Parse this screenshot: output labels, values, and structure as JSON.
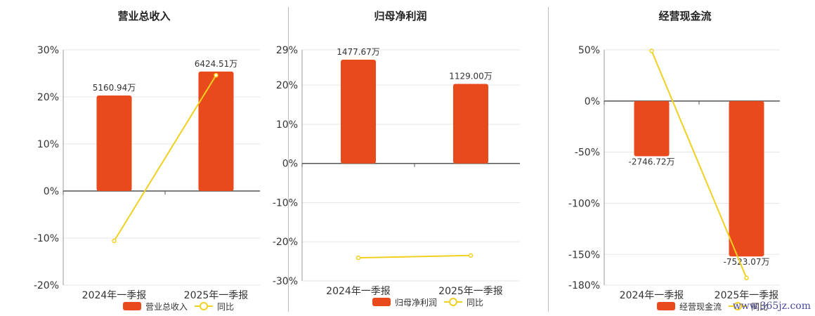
{
  "chart_data": [
    {
      "type": "bar",
      "title": "营业总收入",
      "categories": [
        "2024年一季报",
        "2025年一季报"
      ],
      "series": [
        {
          "name": "营业总收入",
          "kind": "bar",
          "values": [
            20.3,
            25.4
          ],
          "labels": [
            "5160.94万",
            "6424.51万"
          ],
          "color": "#e84a1c"
        },
        {
          "name": "同比",
          "kind": "line",
          "values": [
            -10.6,
            24.6
          ],
          "color": "#f0d020"
        }
      ],
      "ylim": [
        -20,
        30
      ],
      "yticks": [
        30,
        20,
        10,
        0,
        -10,
        -20
      ],
      "ytick_labels": [
        "30%",
        "20%",
        "10%",
        "0%",
        "-10%",
        "-20%"
      ],
      "grid": true,
      "legend": "bottom"
    },
    {
      "type": "bar",
      "title": "归母净利润",
      "categories": [
        "2024年一季报",
        "2025年一季报"
      ],
      "series": [
        {
          "name": "归母净利润",
          "kind": "bar",
          "values": [
            26.5,
            20.3
          ],
          "labels": [
            "1477.67万",
            "1129.00万"
          ],
          "color": "#e84a1c"
        },
        {
          "name": "同比",
          "kind": "line",
          "values": [
            -24.1,
            -23.5
          ],
          "color": "#f0d020"
        }
      ],
      "ylim": [
        -30,
        29
      ],
      "yticks": [
        29,
        20,
        10,
        0,
        -10,
        -20,
        -30
      ],
      "ytick_labels": [
        "29%",
        "20%",
        "10%",
        "0%",
        "-10%",
        "-20%",
        "-30%"
      ],
      "grid": true,
      "legend": "bottom"
    },
    {
      "type": "bar",
      "title": "经营现金流",
      "categories": [
        "2024年一季报",
        "2025年一季报"
      ],
      "series": [
        {
          "name": "经营现金流",
          "kind": "bar",
          "values": [
            -54,
            -152
          ],
          "labels": [
            "-2746.72万",
            "-7523.07万"
          ],
          "color": "#e84a1c"
        },
        {
          "name": "同比",
          "kind": "line",
          "values": [
            49,
            -173
          ],
          "color": "#f0d020"
        }
      ],
      "ylim": [
        -180,
        50
      ],
      "yticks": [
        50,
        0,
        -50,
        -100,
        -150,
        -180
      ],
      "ytick_labels": [
        "50%",
        "0%",
        "-50%",
        "-100%",
        "-150%",
        "-180%"
      ],
      "grid": true,
      "legend": "bottom"
    }
  ],
  "watermark": "www.365jz.com"
}
